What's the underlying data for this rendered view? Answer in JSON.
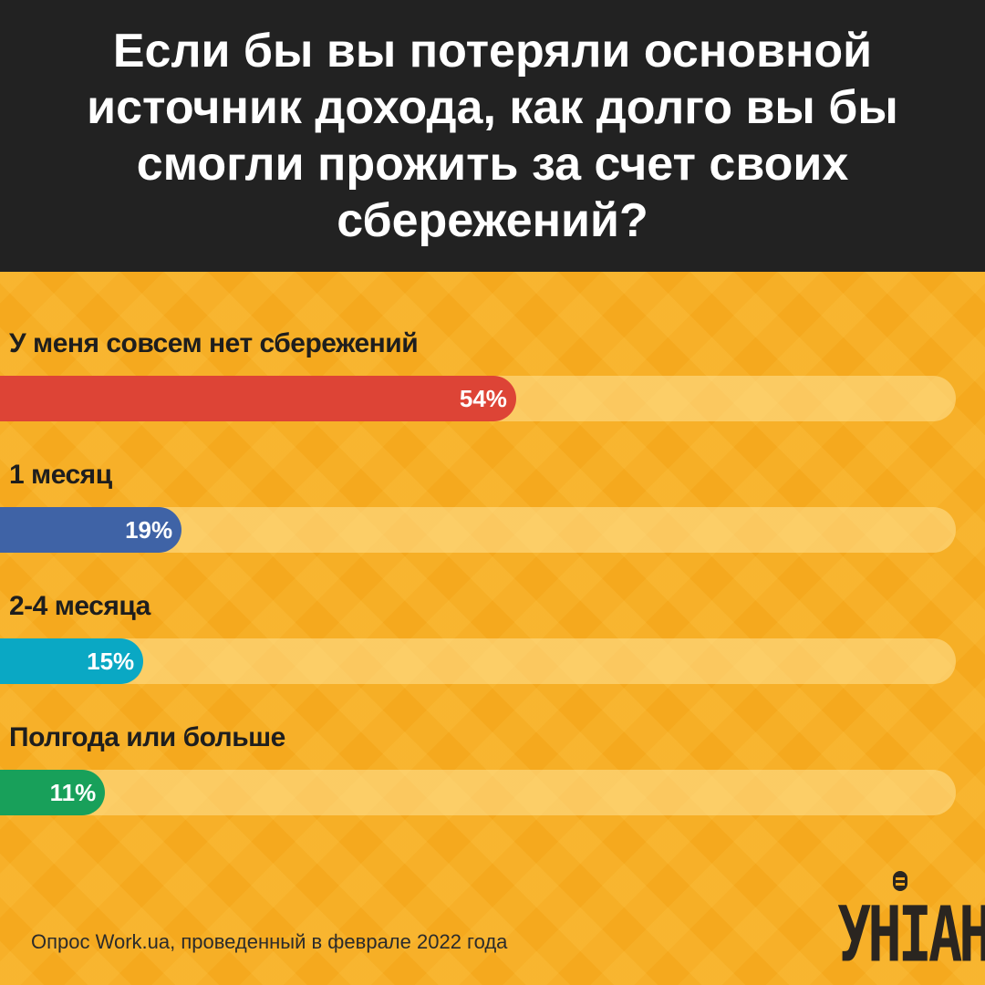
{
  "header": {
    "title": "Если бы вы потеряли основной источник дохода, как долго вы бы смогли прожить за счет своих сбережений?"
  },
  "chart_data": {
    "type": "bar",
    "title": "Если бы вы потеряли основной источник дохода, как долго вы бы смогли прожить за счет своих сбережений?",
    "categories": [
      "У меня совсем нет сбережений",
      "1 месяц",
      "2-4 месяца",
      "Полгода или больше"
    ],
    "values": [
      54,
      19,
      15,
      11
    ],
    "value_labels": [
      "54%",
      "19%",
      "15%",
      "11%"
    ],
    "colors": [
      "#DD4436",
      "#3F63A6",
      "#0AA8C4",
      "#18A05A"
    ],
    "xlim": [
      0,
      100
    ],
    "unit": "%"
  },
  "footer": {
    "source": "Опрос Work.ua, проведенный в феврале 2022 года",
    "logo": "УНІАН"
  },
  "colors": {
    "header_bg": "#222222",
    "background": "#F5A91E"
  }
}
